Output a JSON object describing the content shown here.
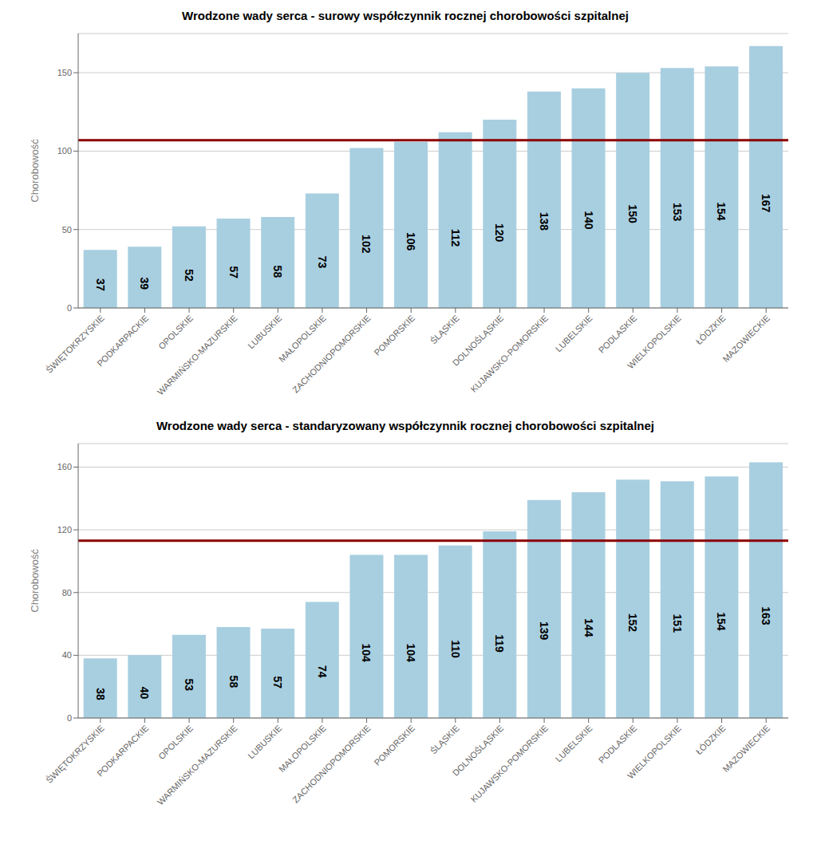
{
  "chart_data": [
    {
      "type": "bar",
      "title": "Wrodzone wady serca - surowy współczynnik rocznej chorobowości szpitalnej",
      "categories": [
        "ŚWIĘTOKRZYSKIE",
        "PODKARPACKIE",
        "OPOLSKIE",
        "WARMIŃSKO-MAZURSKIE",
        "LUBUSKIE",
        "MAŁOPOLSKIE",
        "ZACHODNIOPOMORSKIE",
        "POMORSKIE",
        "ŚLĄSKIE",
        "DOLNOŚLĄSKIE",
        "KUJAWSKO-POMORSKIE",
        "LUBELSKIE",
        "PODLASKIE",
        "WIELKOPOLSKIE",
        "ŁÓDZKIE",
        "MAZOWIECKIE"
      ],
      "values": [
        37,
        39,
        52,
        57,
        58,
        73,
        102,
        106,
        112,
        120,
        138,
        140,
        150,
        153,
        154,
        167
      ],
      "color": "#a8cfe0",
      "ylabel": "Chorobowość",
      "ylim": [
        0,
        175
      ],
      "yticks": [
        0,
        50,
        100,
        150
      ],
      "grid": true,
      "data_labels": true,
      "hline": {
        "value": 107,
        "color": "#8b0000"
      }
    },
    {
      "type": "bar",
      "title": "Wrodzone wady serca - standaryzowany współczynnik rocznej chorobowości szpitalnej",
      "categories": [
        "ŚWIĘTOKRZYSKIE",
        "PODKARPACKIE",
        "OPOLSKIE",
        "WARMIŃSKO-MAZURSKIE",
        "LUBUSKIE",
        "MAŁOPOLSKIE",
        "ZACHODNIOPOMORSKIE",
        "POMORSKIE",
        "ŚLĄSKIE",
        "DOLNOŚLĄSKIE",
        "KUJAWSKO-POMORSKIE",
        "LUBELSKIE",
        "PODLASKIE",
        "WIELKOPOLSKIE",
        "ŁÓDZKIE",
        "MAZOWIECKIE"
      ],
      "values": [
        38,
        40,
        53,
        58,
        57,
        74,
        104,
        104,
        110,
        119,
        139,
        144,
        152,
        151,
        154,
        163
      ],
      "color": "#a8cfe0",
      "ylabel": "Chorobowość",
      "ylim": [
        0,
        175
      ],
      "yticks": [
        0,
        40,
        80,
        120,
        160
      ],
      "grid": true,
      "data_labels": true,
      "hline": {
        "value": 113,
        "color": "#8b0000"
      }
    }
  ]
}
